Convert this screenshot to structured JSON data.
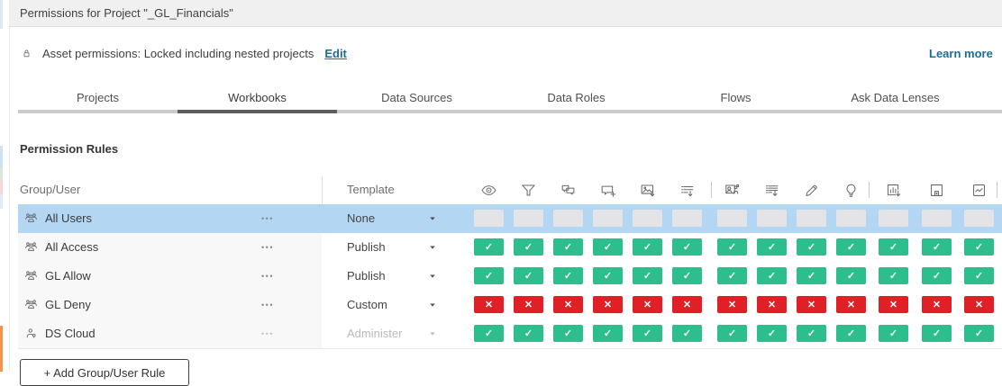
{
  "window": {
    "title": "Permissions for Project \"_GL_Financials\""
  },
  "asset_bar": {
    "label": "Asset permissions: Locked including nested projects",
    "edit_link": "Edit",
    "learn_more_link": "Learn more"
  },
  "tabs": {
    "items": [
      {
        "label": "Projects",
        "active": false
      },
      {
        "label": "Workbooks",
        "active": true
      },
      {
        "label": "Data Sources",
        "active": false
      },
      {
        "label": "Data Roles",
        "active": false
      },
      {
        "label": "Flows",
        "active": false
      },
      {
        "label": "Ask Data Lenses",
        "active": false
      }
    ]
  },
  "rules": {
    "heading": "Permission Rules",
    "columns": {
      "group_user": "Group/User",
      "template": "Template"
    },
    "row_menu_glyph": "•••",
    "capabilities": [
      {
        "name": "view",
        "icon": "eye-icon"
      },
      {
        "name": "filter",
        "icon": "filter-icon"
      },
      {
        "name": "view-comments",
        "icon": "view-comments-icon"
      },
      {
        "name": "add-comments",
        "icon": "add-comments-icon"
      },
      {
        "name": "download-image-pdf",
        "icon": "download-image-icon"
      },
      {
        "name": "download-summary-data",
        "icon": "download-summary-icon"
      },
      {
        "name": "share-customized",
        "icon": "share-customized-icon"
      },
      {
        "name": "download-full-data",
        "icon": "download-full-data-icon"
      },
      {
        "name": "web-edit",
        "icon": "pencil-icon"
      },
      {
        "name": "run-explain-data",
        "icon": "lightbulb-icon"
      },
      {
        "name": "download-workbook",
        "icon": "download-workbook-icon"
      },
      {
        "name": "overwrite",
        "icon": "save-icon"
      },
      {
        "name": "create-refresh-metrics",
        "icon": "metrics-icon"
      }
    ],
    "rows": [
      {
        "name": "All Users",
        "member_icon": "group-icon",
        "template": "None",
        "template_disabled": false,
        "selected": true,
        "permission_state": "unspecified"
      },
      {
        "name": "All Access",
        "member_icon": "group-icon",
        "template": "Publish",
        "template_disabled": false,
        "selected": false,
        "permission_state": "allowed"
      },
      {
        "name": "GL Allow",
        "member_icon": "group-icon",
        "template": "Publish",
        "template_disabled": false,
        "selected": false,
        "permission_state": "allowed"
      },
      {
        "name": "GL Deny",
        "member_icon": "group-icon",
        "template": "Custom",
        "template_disabled": false,
        "selected": false,
        "permission_state": "denied"
      },
      {
        "name": "DS Cloud",
        "member_icon": "user-icon",
        "template": "Administer",
        "template_disabled": true,
        "selected": false,
        "permission_state": "allowed"
      }
    ],
    "add_button_label": "+ Add Group/User Rule"
  },
  "glyphs": {
    "allowed": "✓",
    "denied": "✕"
  },
  "colors": {
    "allowed": "#2ebd8c",
    "denied": "#df2127",
    "unspecified": "#e4e4e6",
    "selected_row": "#b3d6f2",
    "link": "#1b6d98"
  }
}
